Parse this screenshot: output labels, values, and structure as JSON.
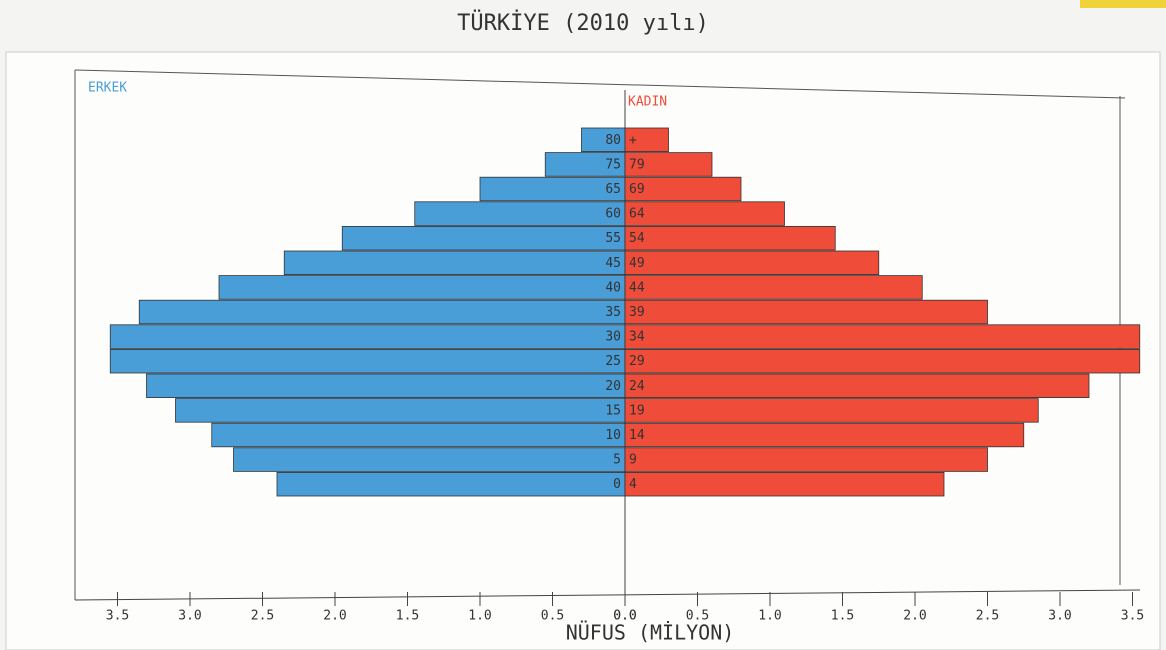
{
  "chart_data": {
    "type": "pyramid",
    "title": "TÜRKİYE (2010 yılı)",
    "xlabel": "NÜFUS (MİLYON)",
    "age_from": [
      "80",
      "75",
      "65",
      "60",
      "55",
      "45",
      "40",
      "35",
      "30",
      "25",
      "20",
      "15",
      "10",
      "5",
      "0"
    ],
    "age_to": [
      "+",
      "79",
      "69",
      "64",
      "54",
      "49",
      "44",
      "39",
      "34",
      "29",
      "24",
      "19",
      "14",
      "9",
      "4"
    ],
    "series": [
      {
        "name": "ERKEK",
        "color": "#4a9ed8",
        "values": [
          0.3,
          0.55,
          1.0,
          1.45,
          1.95,
          2.35,
          2.8,
          3.35,
          3.55,
          3.55,
          3.3,
          3.1,
          2.85,
          2.7,
          2.4
        ]
      },
      {
        "name": "KADIN",
        "color": "#f04c3a",
        "values": [
          0.3,
          0.6,
          0.8,
          1.1,
          1.45,
          1.75,
          2.05,
          2.5,
          3.55,
          3.55,
          3.2,
          2.85,
          2.75,
          2.5,
          2.2
        ]
      }
    ],
    "xlim": [
      0,
      3.6
    ],
    "xticks": [
      {
        "value": 0,
        "label": "0.0"
      },
      0.5,
      {
        "value": 1,
        "label": "1.0"
      },
      1.5,
      {
        "value": 2,
        "label": "2.0"
      },
      2.5,
      {
        "value": 3,
        "label": "3.0"
      },
      3.5
    ]
  }
}
